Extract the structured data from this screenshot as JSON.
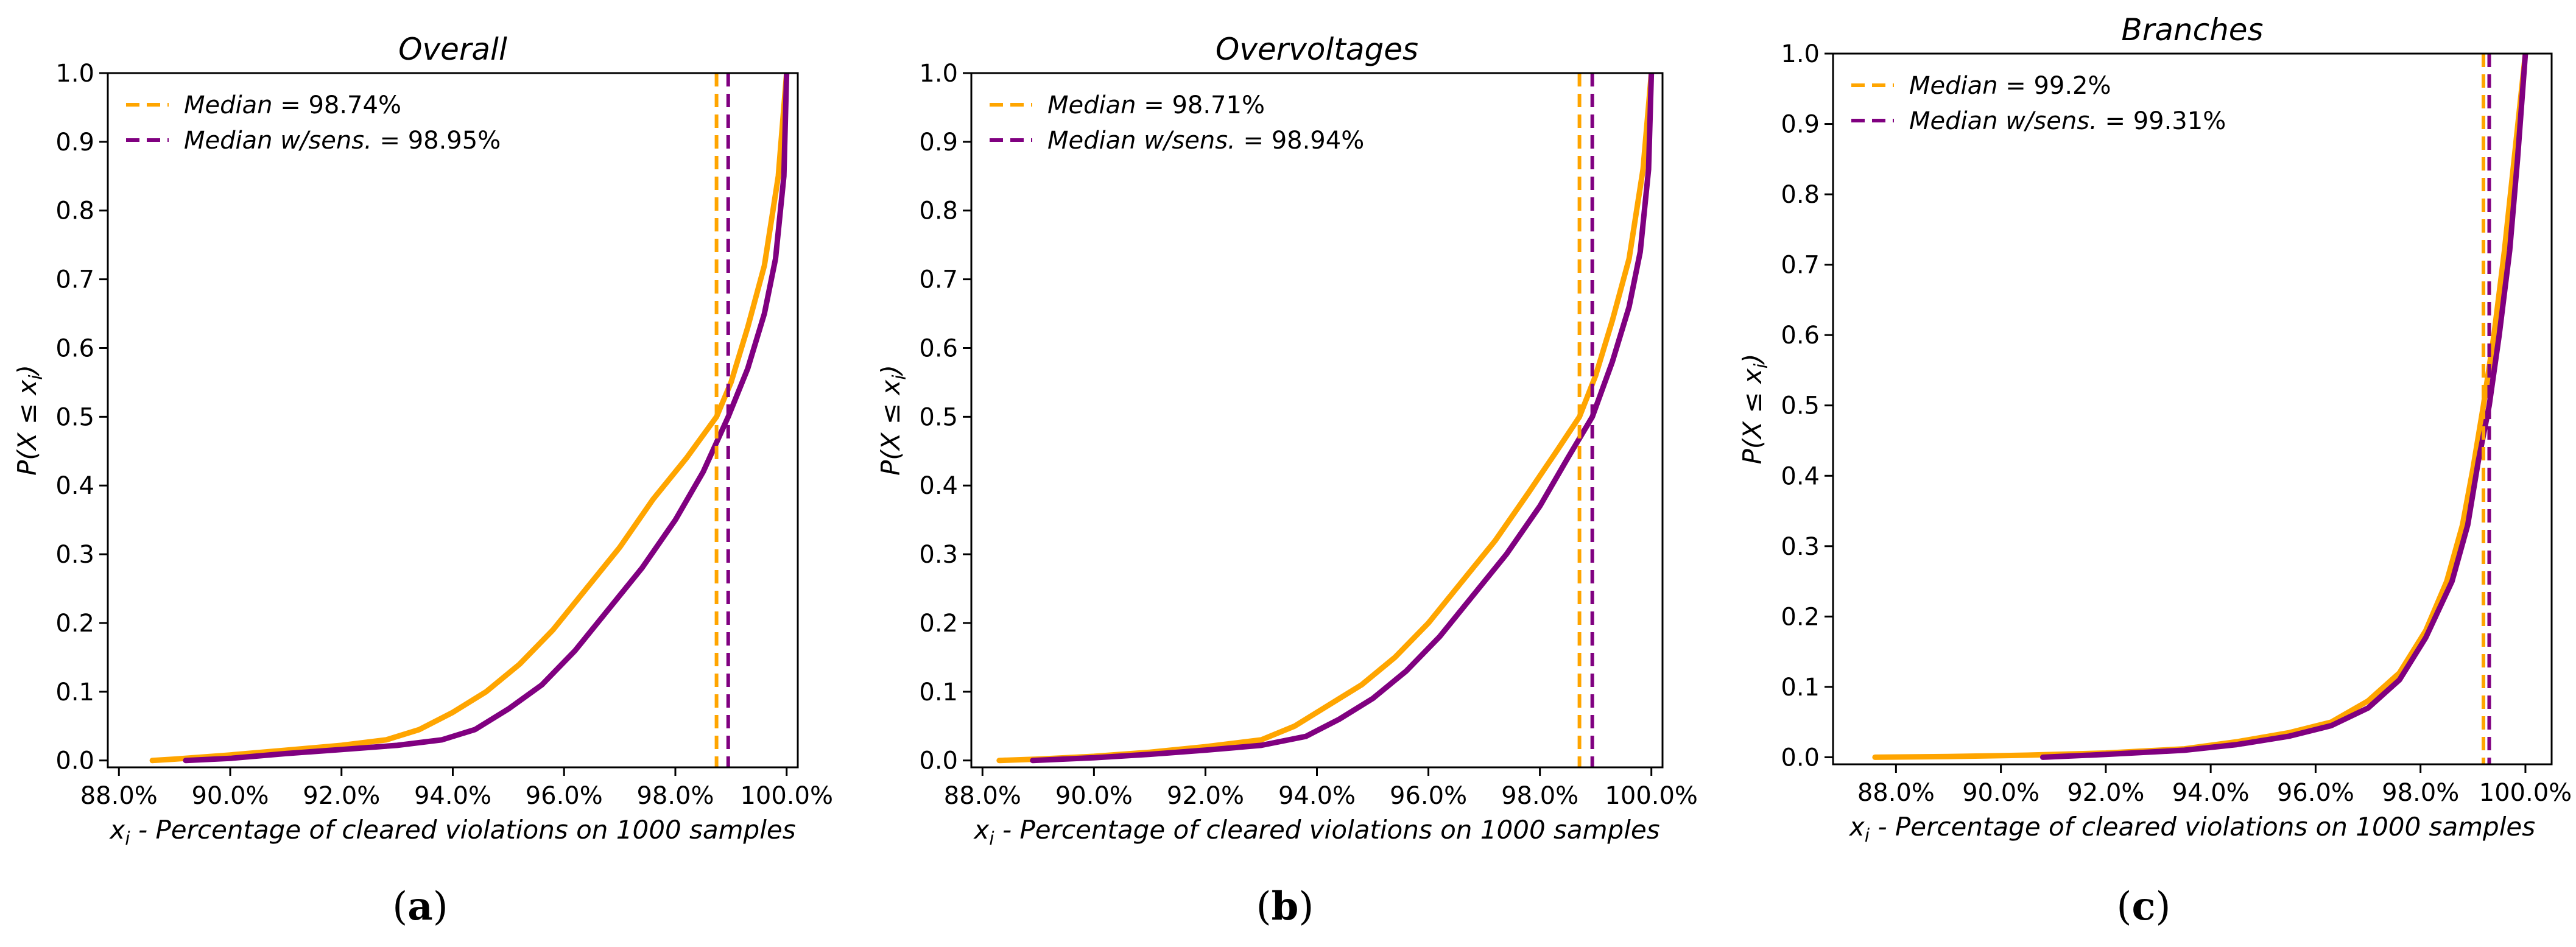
{
  "colors": {
    "standard": "#ffa500",
    "with_sensitivity": "#800080"
  },
  "chart_data": [
    {
      "type": "line",
      "panel": "a",
      "title": "Overall",
      "xlabel_var": "x",
      "xlabel_sub": "i",
      "xlabel_rest": " - Percentage of cleared violations on 1000 samples",
      "ylabel_prefix": "P(X ≤ x",
      "ylabel_sub": "i",
      "ylabel_suffix": ")",
      "xlim": [
        87.8,
        100.2
      ],
      "ylim": [
        -0.01,
        1.0
      ],
      "xticks": [
        88,
        90,
        92,
        94,
        96,
        98,
        100
      ],
      "xtick_labels": [
        "88.0%",
        "90.0%",
        "92.0%",
        "94.0%",
        "96.0%",
        "98.0%",
        "100.0%"
      ],
      "yticks": [
        0.0,
        0.1,
        0.2,
        0.3,
        0.4,
        0.5,
        0.6,
        0.7,
        0.8,
        0.9,
        1.0
      ],
      "ytick_labels": [
        "0.0",
        "0.1",
        "0.2",
        "0.3",
        "0.4",
        "0.5",
        "0.6",
        "0.7",
        "0.8",
        "0.9",
        "1.0"
      ],
      "legend_position": "top-left",
      "medians": [
        {
          "label_name": "Median",
          "label_value": " = 98.74%",
          "value": 98.74,
          "series": "standard"
        },
        {
          "label_name": "Median w/sens.",
          "label_value": " = 98.95%",
          "value": 98.95,
          "series": "with_sensitivity"
        }
      ],
      "series": [
        {
          "name": "standard",
          "x": [
            88.6,
            89.0,
            90.0,
            91.0,
            92.0,
            92.8,
            93.4,
            94.0,
            94.6,
            95.2,
            95.8,
            96.4,
            97.0,
            97.6,
            98.2,
            98.74,
            99.0,
            99.3,
            99.6,
            99.85,
            100.0
          ],
          "y": [
            0.0,
            0.002,
            0.008,
            0.015,
            0.022,
            0.03,
            0.045,
            0.07,
            0.1,
            0.14,
            0.19,
            0.25,
            0.31,
            0.38,
            0.44,
            0.5,
            0.55,
            0.63,
            0.72,
            0.85,
            1.0
          ]
        },
        {
          "name": "with_sensitivity",
          "x": [
            89.2,
            90.0,
            91.0,
            92.0,
            93.0,
            93.8,
            94.4,
            95.0,
            95.6,
            96.2,
            96.8,
            97.4,
            98.0,
            98.5,
            98.95,
            99.3,
            99.6,
            99.8,
            99.95,
            100.0
          ],
          "y": [
            0.0,
            0.003,
            0.01,
            0.016,
            0.022,
            0.03,
            0.045,
            0.075,
            0.11,
            0.16,
            0.22,
            0.28,
            0.35,
            0.42,
            0.5,
            0.57,
            0.65,
            0.73,
            0.85,
            1.0
          ]
        }
      ]
    },
    {
      "type": "line",
      "panel": "b",
      "title": "Overvoltages",
      "xlabel_var": "x",
      "xlabel_sub": "i",
      "xlabel_rest": " - Percentage of cleared violations on 1000 samples",
      "ylabel_prefix": "P(X ≤ x",
      "ylabel_sub": "i",
      "ylabel_suffix": ")",
      "xlim": [
        87.8,
        100.2
      ],
      "ylim": [
        -0.01,
        1.0
      ],
      "xticks": [
        88,
        90,
        92,
        94,
        96,
        98,
        100
      ],
      "xtick_labels": [
        "88.0%",
        "90.0%",
        "92.0%",
        "94.0%",
        "96.0%",
        "98.0%",
        "100.0%"
      ],
      "yticks": [
        0.0,
        0.1,
        0.2,
        0.3,
        0.4,
        0.5,
        0.6,
        0.7,
        0.8,
        0.9,
        1.0
      ],
      "ytick_labels": [
        "0.0",
        "0.1",
        "0.2",
        "0.3",
        "0.4",
        "0.5",
        "0.6",
        "0.7",
        "0.8",
        "0.9",
        "1.0"
      ],
      "legend_position": "top-left",
      "medians": [
        {
          "label_name": "Median",
          "label_value": " = 98.71%",
          "value": 98.71,
          "series": "standard"
        },
        {
          "label_name": "Median w/sens.",
          "label_value": " = 98.94%",
          "value": 98.94,
          "series": "with_sensitivity"
        }
      ],
      "series": [
        {
          "name": "standard",
          "x": [
            88.3,
            89.0,
            90.0,
            91.0,
            92.0,
            93.0,
            93.6,
            94.2,
            94.8,
            95.4,
            96.0,
            96.6,
            97.2,
            97.8,
            98.3,
            98.71,
            99.0,
            99.3,
            99.6,
            99.85,
            100.0
          ],
          "y": [
            0.0,
            0.002,
            0.006,
            0.012,
            0.02,
            0.03,
            0.05,
            0.08,
            0.11,
            0.15,
            0.2,
            0.26,
            0.32,
            0.39,
            0.45,
            0.5,
            0.56,
            0.64,
            0.73,
            0.86,
            1.0
          ]
        },
        {
          "name": "with_sensitivity",
          "x": [
            88.9,
            90.0,
            91.0,
            92.0,
            93.0,
            93.8,
            94.4,
            95.0,
            95.6,
            96.2,
            96.8,
            97.4,
            98.0,
            98.5,
            98.94,
            99.3,
            99.6,
            99.8,
            99.95,
            100.0
          ],
          "y": [
            0.0,
            0.004,
            0.009,
            0.015,
            0.022,
            0.035,
            0.06,
            0.09,
            0.13,
            0.18,
            0.24,
            0.3,
            0.37,
            0.44,
            0.5,
            0.58,
            0.66,
            0.74,
            0.86,
            1.0
          ]
        }
      ]
    },
    {
      "type": "line",
      "panel": "c",
      "title": "Branches",
      "xlabel_var": "x",
      "xlabel_sub": "i",
      "xlabel_rest": " - Percentage of cleared violations on 1000 samples",
      "ylabel_prefix": "P(X ≤ x",
      "ylabel_sub": "i",
      "ylabel_suffix": ")",
      "xlim": [
        86.8,
        100.5
      ],
      "ylim": [
        -0.01,
        1.0
      ],
      "xticks": [
        88,
        90,
        92,
        94,
        96,
        98,
        100
      ],
      "xtick_labels": [
        "88.0%",
        "90.0%",
        "92.0%",
        "94.0%",
        "96.0%",
        "98.0%",
        "100.0%"
      ],
      "yticks": [
        0.0,
        0.1,
        0.2,
        0.3,
        0.4,
        0.5,
        0.6,
        0.7,
        0.8,
        0.9,
        1.0
      ],
      "ytick_labels": [
        "0.0",
        "0.1",
        "0.2",
        "0.3",
        "0.4",
        "0.5",
        "0.6",
        "0.7",
        "0.8",
        "0.9",
        "1.0"
      ],
      "legend_position": "top-left",
      "medians": [
        {
          "label_name": "Median",
          "label_value": " = 99.2%",
          "value": 99.2,
          "series": "standard"
        },
        {
          "label_name": "Median w/sens.",
          "label_value": " = 99.31%",
          "value": 99.31,
          "series": "with_sensitivity"
        }
      ],
      "series": [
        {
          "name": "standard",
          "x": [
            87.6,
            89.0,
            90.5,
            92.0,
            93.5,
            94.5,
            95.5,
            96.3,
            97.0,
            97.6,
            98.1,
            98.5,
            98.8,
            99.0,
            99.2,
            99.4,
            99.6,
            99.8,
            100.0
          ],
          "y": [
            0.0,
            0.001,
            0.003,
            0.006,
            0.012,
            0.022,
            0.035,
            0.05,
            0.08,
            0.12,
            0.18,
            0.25,
            0.33,
            0.41,
            0.5,
            0.6,
            0.72,
            0.86,
            1.0
          ]
        },
        {
          "name": "with_sensitivity",
          "x": [
            90.8,
            92.0,
            93.5,
            94.5,
            95.5,
            96.3,
            97.0,
            97.6,
            98.1,
            98.6,
            98.9,
            99.1,
            99.31,
            99.5,
            99.7,
            99.85,
            100.0
          ],
          "y": [
            0.0,
            0.004,
            0.01,
            0.018,
            0.03,
            0.045,
            0.07,
            0.11,
            0.17,
            0.25,
            0.33,
            0.42,
            0.5,
            0.6,
            0.72,
            0.85,
            1.0
          ]
        }
      ]
    }
  ]
}
